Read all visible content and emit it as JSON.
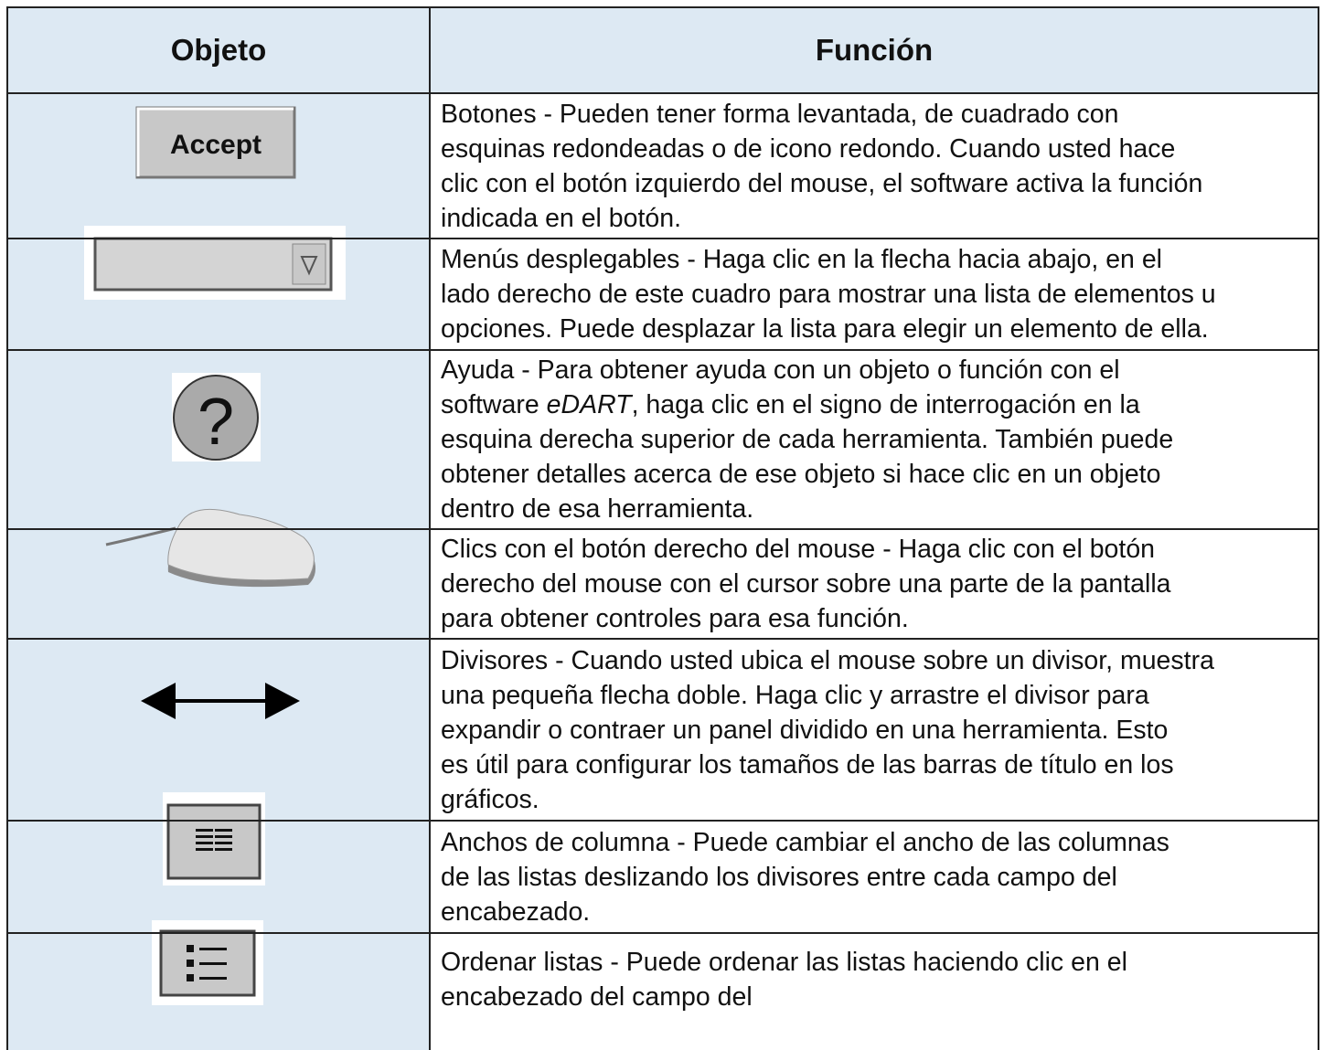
{
  "table": {
    "header": [
      "Objeto",
      "Función"
    ],
    "rows": [
      {
        "icon_label": "Accept",
        "lines": [
          "Botones - Pueden tener forma levantada, de cuadrado con",
          "esquinas redondeadas o de icono redondo. Cuando usted hace",
          "clic con el botón izquierdo del mouse, el software activa la función",
          "indicada en el botón."
        ]
      },
      {
        "lines": [
          "Menús desplegables - Haga clic en la flecha hacia abajo, en el",
          "lado derecho de este cuadro para mostrar una lista de elementos u",
          "opciones. Puede desplazar la lista para elegir un elemento de ella."
        ]
      },
      {
        "icon_label": "?",
        "lines": [
          "Ayuda - Para obtener ayuda con un objeto o función con el",
          {
            "before": "software ",
            "em": "eDART",
            "after": ", haga clic en el signo de interrogación en la"
          },
          "esquina derecha superior de cada herramienta. También puede",
          "obtener detalles acerca de ese objeto si hace clic en un objeto",
          "dentro de esa herramienta."
        ]
      },
      {
        "lines": [
          "Clics con el botón derecho del mouse - Haga clic con el botón",
          "derecho del mouse con el cursor sobre una parte de la pantalla",
          "para obtener controles para esa función."
        ]
      },
      {
        "lines": [
          "Divisores - Cuando usted ubica el mouse sobre un divisor, muestra",
          "una pequeña flecha doble. Haga clic y arrastre el divisor para",
          "expandir o contraer un panel dividido en una herramienta. Esto",
          "es útil para configurar los tamaños de las barras de título en los",
          "gráficos."
        ]
      },
      {
        "lines": [
          "Anchos de columna - Puede cambiar el ancho de las columnas",
          "de las listas deslizando los divisores entre cada campo del",
          "encabezado."
        ]
      },
      {
        "lines": [
          "Ordenar listas - Puede ordenar las listas haciendo clic en el",
          "encabezado del campo del"
        ]
      }
    ]
  }
}
